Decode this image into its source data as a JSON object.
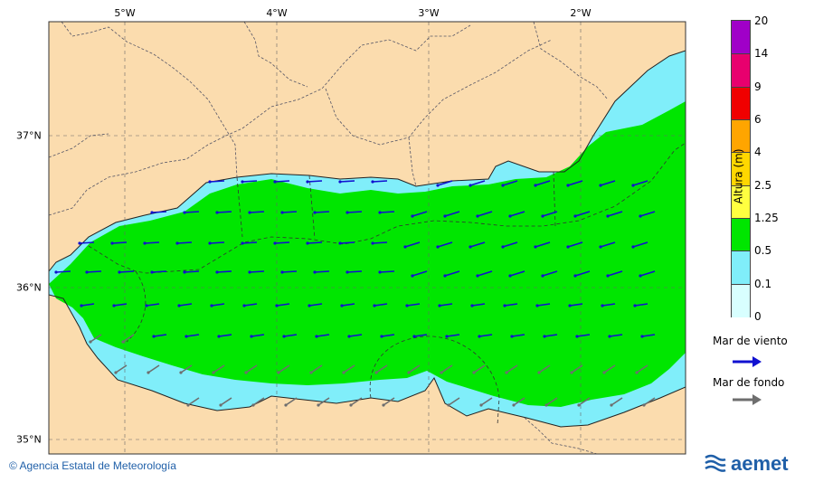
{
  "map": {
    "lon_ticks": [
      "5°W",
      "4°W",
      "3°W",
      "2°W"
    ],
    "lat_ticks": [
      "37°N",
      "36°N",
      "35°N"
    ],
    "colors": {
      "land": "#fbdcae",
      "sea_high": "#00e600",
      "sea_low": "#80eefa",
      "wind_arrow": "#1010d0",
      "swell_arrow": "#6e6e6e"
    }
  },
  "legend": {
    "title": "Altura (m)",
    "levels": [
      "20",
      "14",
      "9",
      "6",
      "4",
      "2.5",
      "1.25",
      "0.5",
      "0.1",
      "0"
    ],
    "colors": [
      "#a000c8",
      "#e8006e",
      "#f00000",
      "#ffa500",
      "#ffd700",
      "#ffff40",
      "#00e600",
      "#80eefa",
      "#d8ffff"
    ],
    "wind_label": "Mar de viento",
    "swell_label": "Mar de fondo"
  },
  "footer": {
    "credit": "© Agencia Estatal de Meteorología",
    "brand": "aemet"
  }
}
